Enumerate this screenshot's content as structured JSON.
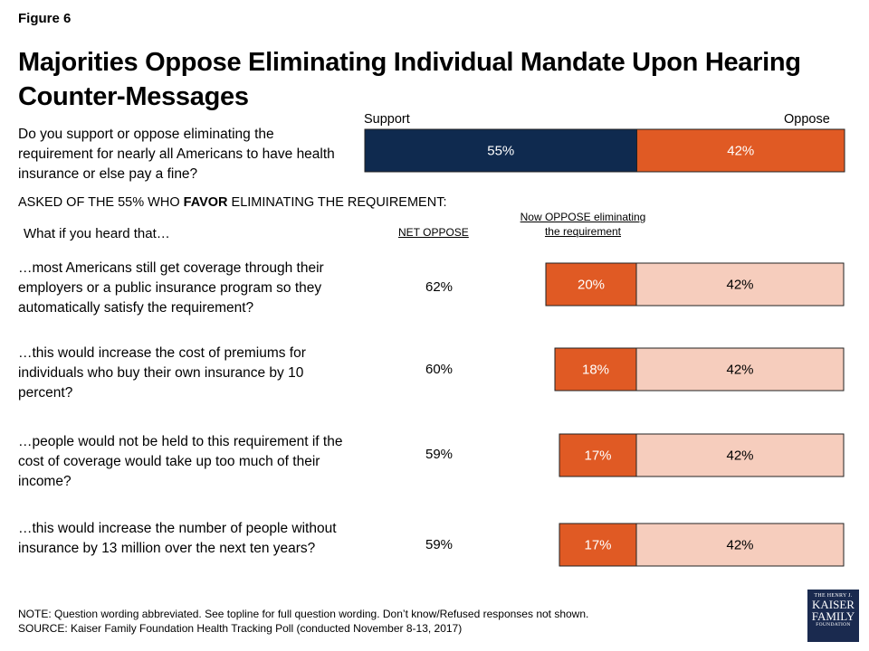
{
  "figure_label": "Figure 6",
  "chart_data": {
    "type": "bar",
    "title": "Majorities Oppose Eliminating Individual Mandate Upon Hearing Counter-Messages",
    "main_question": {
      "text": "Do you support or oppose eliminating the requirement for nearly all Americans to have health insurance or else pay a fine?",
      "support_label": "Support",
      "oppose_label": "Oppose",
      "support": 55,
      "oppose": 42,
      "support_text": "55%",
      "oppose_text": "42%"
    },
    "asked_prefix": "ASKED OF THE 55% WHO ",
    "asked_bold": "FAVOR",
    "asked_suffix": " ELIMINATING THE REQUIREMENT:",
    "heard_prompt": "What if you heard that…",
    "net_oppose_header": "NET OPPOSE",
    "now_oppose_header": "Now OPPOSE eliminating the requirement",
    "series": [
      {
        "name": "Now OPPOSE eliminating the requirement"
      },
      {
        "name": ""
      }
    ],
    "items": [
      {
        "text": "…most Americans still get coverage through their employers or a public insurance program so they automatically satisfy the requirement?",
        "net": "62%",
        "now_oppose": 20,
        "now_oppose_text": "20%",
        "oppose": 42,
        "oppose_text": "42%"
      },
      {
        "text": "…this would increase the cost of premiums for individuals who buy their own insurance by 10 percent?",
        "net": "60%",
        "now_oppose": 18,
        "now_oppose_text": "18%",
        "oppose": 42,
        "oppose_text": "42%"
      },
      {
        "text": "…people would not be held to this requirement if the cost of coverage would take up too much of their income?",
        "net": "59%",
        "now_oppose": 17,
        "now_oppose_text": "17%",
        "oppose": 42,
        "oppose_text": "42%"
      },
      {
        "text": "…this would increase the number of people without insurance by 13 million over the next ten years?",
        "net": "59%",
        "now_oppose": 17,
        "now_oppose_text": "17%",
        "oppose": 42,
        "oppose_text": "42%"
      }
    ],
    "colors": {
      "support": "#0f2a4f",
      "now_oppose": "#e05a24",
      "oppose_light": "#f6cdbd",
      "border": "#222222"
    }
  },
  "note": "NOTE: Question wording abbreviated. See topline for full question wording. Don’t know/Refused responses not shown.",
  "source": "SOURCE: Kaiser Family Foundation Health Tracking Poll (conducted November 8-13, 2017)",
  "logo": {
    "line1": "THE HENRY J.",
    "line2": "KAISER",
    "line3": "FAMILY",
    "line4": "FOUNDATION"
  }
}
